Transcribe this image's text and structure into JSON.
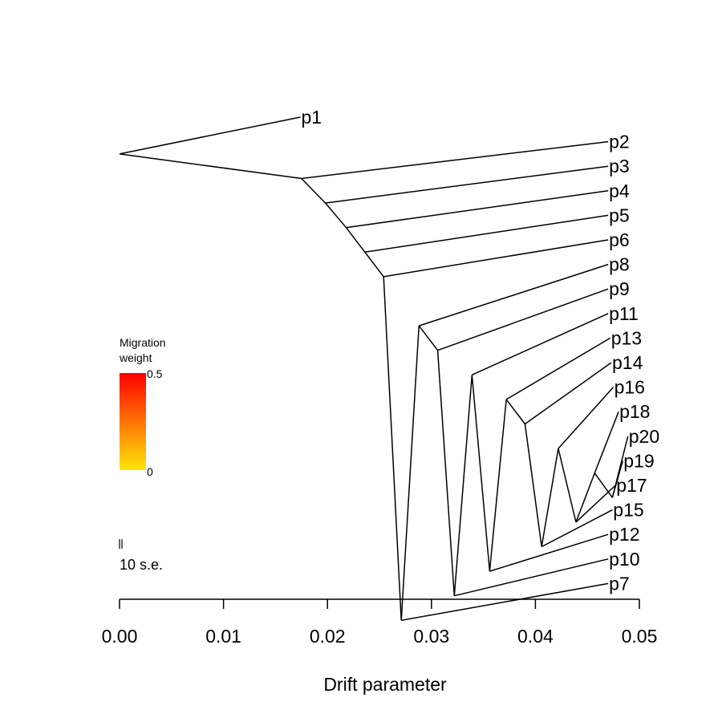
{
  "chart_data": {
    "type": "tree",
    "xlabel": "Drift parameter",
    "xlim": [
      0,
      0.05
    ],
    "xticks": [
      {
        "value": 0.0,
        "label": "0.00"
      },
      {
        "value": 0.01,
        "label": "0.01"
      },
      {
        "value": 0.02,
        "label": "0.02"
      },
      {
        "value": 0.03,
        "label": "0.03"
      },
      {
        "value": 0.04,
        "label": "0.04"
      },
      {
        "value": 0.05,
        "label": "0.05"
      }
    ],
    "legend": {
      "title_line1": "Migration",
      "title_line2": "weight",
      "max_label": "0.5",
      "min_label": "0",
      "color_low": "#FFE60A",
      "color_high": "#FF0000"
    },
    "scale_bar_label": "10 s.e.",
    "nodes": [
      {
        "id": "root",
        "drift": 0.0,
        "order": 1.5
      },
      {
        "id": "n1",
        "drift": 0.0175,
        "order": 2.5
      },
      {
        "id": "n2",
        "drift": 0.0198,
        "order": 3.5
      },
      {
        "id": "n3",
        "drift": 0.0218,
        "order": 4.5
      },
      {
        "id": "n4",
        "drift": 0.0236,
        "order": 5.5
      },
      {
        "id": "n5",
        "drift": 0.0254,
        "order": 6.5
      },
      {
        "id": "n6",
        "drift": 0.0271,
        "order": 20.5
      },
      {
        "id": "n7",
        "drift": 0.0288,
        "order": 8.5
      },
      {
        "id": "n8",
        "drift": 0.0306,
        "order": 9.5
      },
      {
        "id": "n9",
        "drift": 0.0322,
        "order": 19.5
      },
      {
        "id": "n10",
        "drift": 0.0339,
        "order": 10.5
      },
      {
        "id": "n11",
        "drift": 0.0356,
        "order": 18.5
      },
      {
        "id": "n12",
        "drift": 0.0372,
        "order": 11.5
      },
      {
        "id": "n13",
        "drift": 0.039,
        "order": 12.5
      },
      {
        "id": "n14",
        "drift": 0.0406,
        "order": 17.5
      },
      {
        "id": "n15",
        "drift": 0.0422,
        "order": 13.5
      },
      {
        "id": "n16",
        "drift": 0.0439,
        "order": 16.5
      },
      {
        "id": "n17",
        "drift": 0.0457,
        "order": 14.5
      },
      {
        "id": "n18",
        "drift": 0.0474,
        "order": 15.5
      },
      {
        "id": "p1",
        "drift": 0.0174,
        "order": 0,
        "label": "p1"
      },
      {
        "id": "p2",
        "drift": 0.047,
        "order": 1,
        "label": "p2"
      },
      {
        "id": "p3",
        "drift": 0.047,
        "order": 2,
        "label": "p3"
      },
      {
        "id": "p4",
        "drift": 0.047,
        "order": 3,
        "label": "p4"
      },
      {
        "id": "p5",
        "drift": 0.047,
        "order": 4,
        "label": "p5"
      },
      {
        "id": "p6",
        "drift": 0.047,
        "order": 5,
        "label": "p6"
      },
      {
        "id": "p8",
        "drift": 0.047,
        "order": 6,
        "label": "p8"
      },
      {
        "id": "p9",
        "drift": 0.047,
        "order": 7,
        "label": "p9"
      },
      {
        "id": "p11",
        "drift": 0.047,
        "order": 8,
        "label": "p11"
      },
      {
        "id": "p13",
        "drift": 0.0472,
        "order": 9,
        "label": "p13"
      },
      {
        "id": "p14",
        "drift": 0.0473,
        "order": 10,
        "label": "p14"
      },
      {
        "id": "p16",
        "drift": 0.0475,
        "order": 11,
        "label": "p16"
      },
      {
        "id": "p18",
        "drift": 0.048,
        "order": 12,
        "label": "p18"
      },
      {
        "id": "p20",
        "drift": 0.0489,
        "order": 13,
        "label": "p20"
      },
      {
        "id": "p19",
        "drift": 0.0484,
        "order": 14,
        "label": "p19"
      },
      {
        "id": "p17",
        "drift": 0.0477,
        "order": 15,
        "label": "p17"
      },
      {
        "id": "p15",
        "drift": 0.0474,
        "order": 16,
        "label": "p15"
      },
      {
        "id": "p12",
        "drift": 0.047,
        "order": 17,
        "label": "p12"
      },
      {
        "id": "p10",
        "drift": 0.047,
        "order": 18,
        "label": "p10"
      },
      {
        "id": "p7",
        "drift": 0.047,
        "order": 19,
        "label": "p7"
      }
    ],
    "edges": [
      [
        "root",
        "p1"
      ],
      [
        "root",
        "n1"
      ],
      [
        "n1",
        "p2"
      ],
      [
        "n1",
        "n2"
      ],
      [
        "n2",
        "p3"
      ],
      [
        "n2",
        "n3"
      ],
      [
        "n3",
        "p4"
      ],
      [
        "n3",
        "n4"
      ],
      [
        "n4",
        "p5"
      ],
      [
        "n4",
        "n5"
      ],
      [
        "n5",
        "p6"
      ],
      [
        "n5",
        "n6"
      ],
      [
        "n6",
        "n7"
      ],
      [
        "n6",
        "p7"
      ],
      [
        "n7",
        "p8"
      ],
      [
        "n7",
        "n8"
      ],
      [
        "n8",
        "p9"
      ],
      [
        "n8",
        "n9"
      ],
      [
        "n9",
        "n10"
      ],
      [
        "n9",
        "p10"
      ],
      [
        "n10",
        "p11"
      ],
      [
        "n10",
        "n11"
      ],
      [
        "n11",
        "n12"
      ],
      [
        "n11",
        "p12"
      ],
      [
        "n12",
        "p13"
      ],
      [
        "n12",
        "n13"
      ],
      [
        "n13",
        "p14"
      ],
      [
        "n13",
        "n14"
      ],
      [
        "n14",
        "n15"
      ],
      [
        "n14",
        "p15"
      ],
      [
        "n15",
        "p16"
      ],
      [
        "n15",
        "n16"
      ],
      [
        "n16",
        "n17"
      ],
      [
        "n16",
        "p17"
      ],
      [
        "n17",
        "p18"
      ],
      [
        "n17",
        "n18"
      ],
      [
        "n18",
        "p20"
      ],
      [
        "n18",
        "p19"
      ]
    ]
  }
}
